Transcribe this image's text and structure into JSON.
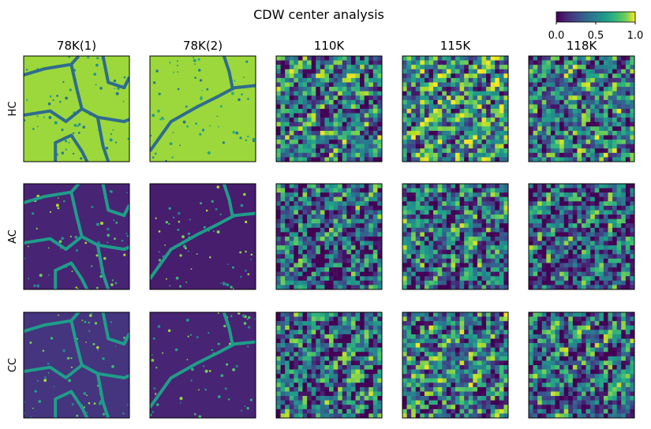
{
  "chart_data": {
    "type": "heatmap",
    "title": "CDW center analysis",
    "columns": [
      "78K(1)",
      "78K(2)",
      "110K",
      "115K",
      "118K"
    ],
    "rows": [
      "HC",
      "AC",
      "CC"
    ],
    "colormap": "viridis",
    "colorbar": {
      "range": [
        0.0,
        1.0
      ],
      "ticks": [
        0.0,
        0.5,
        1.0
      ],
      "tick_labels": [
        "0.0",
        "0.5",
        "1.0"
      ],
      "orientation": "horizontal",
      "placement": "top-right"
    },
    "panels": [
      {
        "row": "HC",
        "column": "78K(1)",
        "pattern": "domains",
        "mean_level": 0.85
      },
      {
        "row": "HC",
        "column": "78K(2)",
        "pattern": "domains",
        "mean_level": 0.85
      },
      {
        "row": "HC",
        "column": "110K",
        "pattern": "texture",
        "mean_level": 0.4
      },
      {
        "row": "HC",
        "column": "115K",
        "pattern": "texture",
        "mean_level": 0.5
      },
      {
        "row": "HC",
        "column": "118K",
        "pattern": "texture",
        "mean_level": 0.4
      },
      {
        "row": "AC",
        "column": "78K(1)",
        "pattern": "walls",
        "mean_level": 0.1
      },
      {
        "row": "AC",
        "column": "78K(2)",
        "pattern": "walls",
        "mean_level": 0.08
      },
      {
        "row": "AC",
        "column": "110K",
        "pattern": "texture",
        "mean_level": 0.3
      },
      {
        "row": "AC",
        "column": "115K",
        "pattern": "texture",
        "mean_level": 0.35
      },
      {
        "row": "AC",
        "column": "118K",
        "pattern": "texture",
        "mean_level": 0.3
      },
      {
        "row": "CC",
        "column": "78K(1)",
        "pattern": "walls",
        "mean_level": 0.15
      },
      {
        "row": "CC",
        "column": "78K(2)",
        "pattern": "walls",
        "mean_level": 0.1
      },
      {
        "row": "CC",
        "column": "110K",
        "pattern": "texture",
        "mean_level": 0.35
      },
      {
        "row": "CC",
        "column": "115K",
        "pattern": "texture",
        "mean_level": 0.4
      },
      {
        "row": "CC",
        "column": "118K",
        "pattern": "texture",
        "mean_level": 0.35
      }
    ]
  }
}
